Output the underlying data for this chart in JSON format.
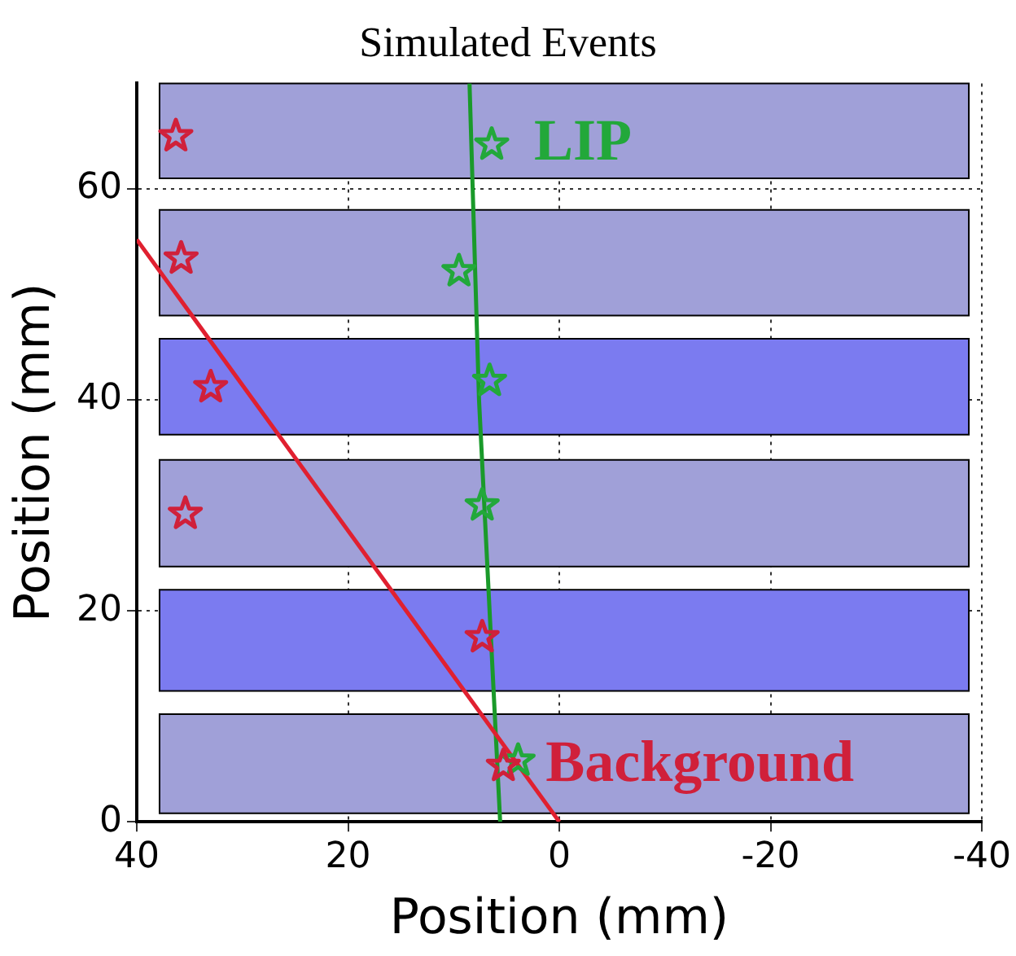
{
  "chart_data": {
    "type": "scatter",
    "title": "Simulated Events",
    "xlabel": "Position (mm)",
    "ylabel": "Position (mm)",
    "xlim": [
      40,
      -40
    ],
    "xticks": [
      40,
      20,
      0,
      -20,
      -40
    ],
    "ylim": [
      0,
      70
    ],
    "yticks": [
      0,
      20,
      40,
      60
    ],
    "grid": true,
    "legend": false,
    "marker": "star",
    "bands": [
      {
        "axis": "y",
        "from": 61,
        "to": 70,
        "color": "#a0a0d8"
      },
      {
        "axis": "y",
        "from": 48,
        "to": 58,
        "color": "#a0a0d8"
      },
      {
        "axis": "y",
        "from": 36.7,
        "to": 45.8,
        "color": "#7b7bf0"
      },
      {
        "axis": "y",
        "from": 24.2,
        "to": 34.3,
        "color": "#a0a0d8"
      },
      {
        "axis": "y",
        "from": 12.4,
        "to": 22,
        "color": "#7b7bf0"
      },
      {
        "axis": "y",
        "from": 0.8,
        "to": 10.2,
        "color": "#a0a0d8"
      }
    ],
    "series": [
      {
        "name": "LIP",
        "color": "#22a83a",
        "x": [
          6.4,
          9.5,
          6.6,
          7.3,
          3.9
        ],
        "values": [
          64.2,
          52.2,
          41.8,
          30,
          5.8
        ]
      },
      {
        "name": "Background",
        "color": "#d0203a",
        "x": [
          5.3,
          7.3,
          35.4,
          33,
          35.8,
          36.3
        ],
        "values": [
          5.3,
          17.5,
          29.2,
          41.2,
          53.4,
          65
        ]
      },
      {
        "type": "line",
        "marker": "none",
        "color": "#e02030",
        "x": [
          40,
          0
        ],
        "values": [
          55.2,
          0
        ]
      },
      {
        "type": "line",
        "marker": "none",
        "color": "#1a9a2a",
        "x": [
          8.5,
          7.6,
          5.6
        ],
        "values": [
          70,
          40,
          0
        ]
      }
    ]
  }
}
